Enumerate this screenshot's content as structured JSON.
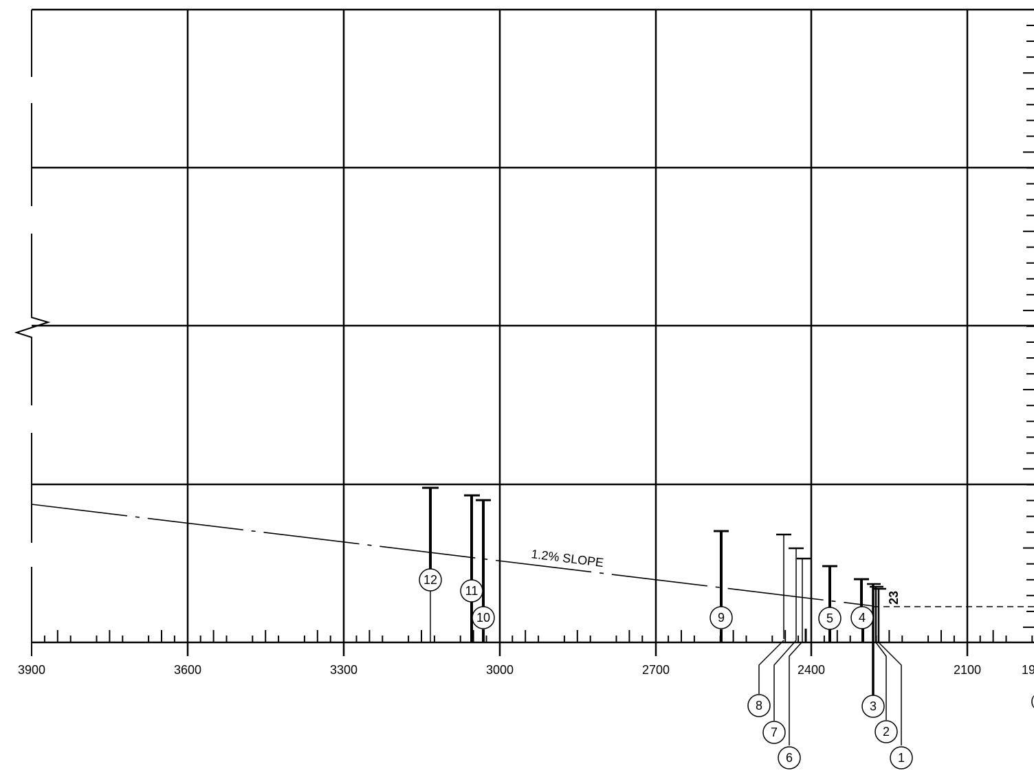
{
  "diagram": {
    "x_axis": {
      "tick_labels": [
        "3900",
        "3600",
        "3300",
        "3000",
        "2700",
        "2400",
        "2100",
        "19"
      ],
      "cut_label": "("
    },
    "slope_label": "1.2% SLOPE",
    "bold_label": "23",
    "obstacles": [
      {
        "id": "1",
        "label": "1"
      },
      {
        "id": "2",
        "label": "2"
      },
      {
        "id": "3",
        "label": "3"
      },
      {
        "id": "4",
        "label": "4"
      },
      {
        "id": "5",
        "label": "5"
      },
      {
        "id": "6",
        "label": "6"
      },
      {
        "id": "7",
        "label": "7"
      },
      {
        "id": "8",
        "label": "8"
      },
      {
        "id": "9",
        "label": "9"
      },
      {
        "id": "10",
        "label": "10"
      },
      {
        "id": "11",
        "label": "11"
      },
      {
        "id": "12",
        "label": "12"
      }
    ]
  }
}
